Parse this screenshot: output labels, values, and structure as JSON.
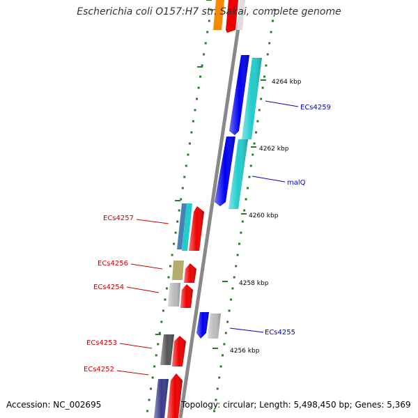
{
  "title": "Escherichia coli O157:H7 str. Sakai, complete genome",
  "footer": {
    "accession": "Accession: NC_002695",
    "summary": "Topology: circular; Length: 5,498,450 bp; Genes: 5,369"
  },
  "colors": {
    "forward_label": "#0000cc",
    "reverse_label": "#cc0000",
    "backbone": "#888888",
    "tick": "#2a7a2a",
    "blue": "#0000ee",
    "cyan": "#22cccc",
    "red": "#ee0000",
    "orange": "#f58a00",
    "gray": "#bbbbbb",
    "darkgray": "#555555",
    "khaki": "#b5ad6e",
    "steelblue": "#4682b4",
    "slate": "#3a3a8c"
  },
  "scale_labels": [
    "4264 kbp",
    "4262 kbp",
    "4260 kbp",
    "4258 kbp",
    "4256 kbp"
  ],
  "gene_labels": [
    {
      "name": "ECs4259",
      "strand": "forward"
    },
    {
      "name": "malQ",
      "strand": "forward"
    },
    {
      "name": "ECs4255",
      "strand": "forward"
    },
    {
      "name": "ECs4257",
      "strand": "reverse"
    },
    {
      "name": "ECs4256",
      "strand": "reverse"
    },
    {
      "name": "ECs4254",
      "strand": "reverse"
    },
    {
      "name": "ECs4253",
      "strand": "reverse"
    },
    {
      "name": "ECs4252",
      "strand": "reverse"
    }
  ]
}
